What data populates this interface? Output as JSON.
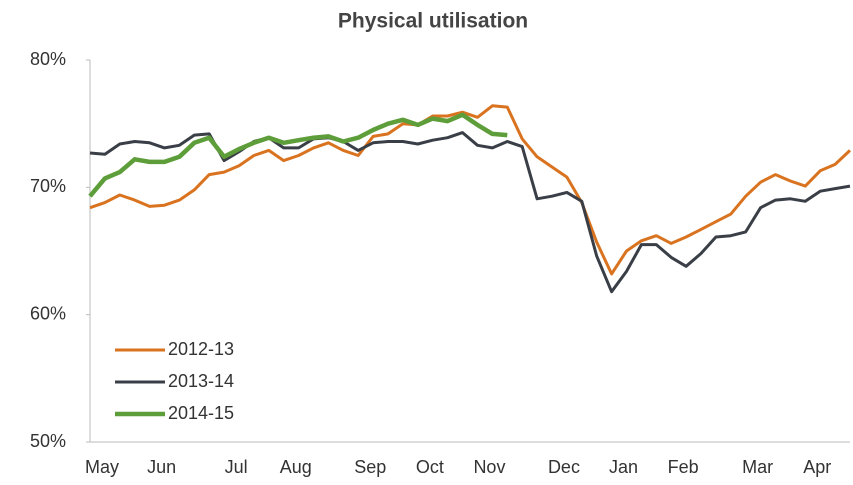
{
  "chart_data": {
    "type": "line",
    "title": "Physical utilisation",
    "categories": [
      "May",
      null,
      null,
      null,
      "Jun",
      null,
      null,
      null,
      null,
      "Jul",
      null,
      null,
      null,
      "Aug",
      null,
      null,
      null,
      null,
      "Sep",
      null,
      null,
      null,
      "Oct",
      null,
      null,
      null,
      "Nov",
      null,
      null,
      null,
      null,
      "Dec",
      null,
      null,
      null,
      "Jan",
      null,
      null,
      null,
      "Feb",
      null,
      null,
      null,
      null,
      "Mar",
      null,
      null,
      null,
      "Apr",
      null,
      null,
      null
    ],
    "series": [
      {
        "name": "2012-13",
        "color": "#d9731f",
        "values": [
          68.4,
          68.8,
          69.4,
          69.0,
          68.5,
          68.6,
          69.0,
          69.8,
          71.0,
          71.2,
          71.7,
          72.5,
          72.9,
          72.1,
          72.5,
          73.1,
          73.5,
          72.9,
          72.5,
          74.0,
          74.2,
          75.0,
          74.9,
          75.6,
          75.6,
          75.9,
          75.5,
          76.4,
          76.3,
          73.8,
          72.4,
          71.6,
          70.8,
          68.8,
          65.7,
          63.2,
          65.0,
          65.8,
          66.2,
          65.6,
          66.1,
          66.7,
          67.3,
          67.9,
          69.3,
          70.4,
          71.0,
          70.5,
          70.1,
          71.3,
          71.8,
          72.9
        ]
      },
      {
        "name": "2013-14",
        "color": "#3a3f47",
        "values": [
          72.7,
          72.6,
          73.4,
          73.6,
          73.5,
          73.1,
          73.3,
          74.1,
          74.2,
          72.1,
          72.8,
          73.6,
          73.9,
          73.1,
          73.1,
          73.8,
          73.9,
          73.6,
          72.9,
          73.5,
          73.6,
          73.6,
          73.4,
          73.7,
          73.9,
          74.3,
          73.3,
          73.1,
          73.6,
          73.2,
          69.1,
          69.3,
          69.6,
          68.9,
          64.6,
          61.8,
          63.4,
          65.5,
          65.5,
          64.5,
          63.8,
          64.8,
          66.1,
          66.2,
          66.5,
          68.4,
          69.0,
          69.1,
          68.9,
          69.7,
          69.9,
          70.1
        ]
      },
      {
        "name": "2014-15",
        "color": "#5e9e3a",
        "values": [
          69.3,
          70.7,
          71.2,
          72.2,
          72.0,
          72.0,
          72.4,
          73.5,
          73.9,
          72.4,
          73.0,
          73.5,
          73.9,
          73.5,
          73.7,
          73.9,
          74.0,
          73.6,
          73.9,
          74.5,
          75.0,
          75.3,
          74.9,
          75.4,
          75.2,
          75.7,
          74.9,
          74.2,
          74.1,
          null,
          null,
          null,
          null,
          null,
          null,
          null,
          null,
          null,
          null,
          null,
          null,
          null,
          null,
          null,
          null,
          null,
          null,
          null,
          null,
          null,
          null,
          null
        ]
      }
    ],
    "ylim": [
      50,
      80
    ],
    "yticks": [
      {
        "value": 50,
        "label": "50%"
      },
      {
        "value": 60,
        "label": "60%"
      },
      {
        "value": 70,
        "label": "70%"
      },
      {
        "value": 80,
        "label": "80%"
      }
    ],
    "grid": false,
    "legend": "lower-left"
  }
}
